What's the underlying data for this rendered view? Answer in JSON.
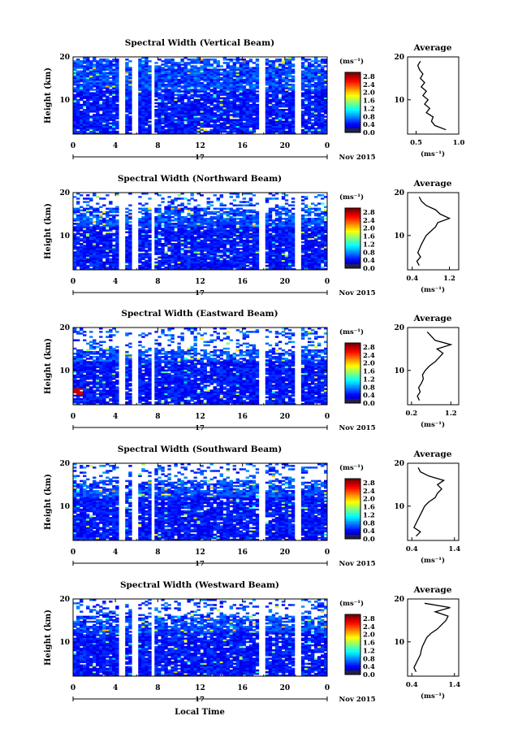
{
  "figure": {
    "xaxis_title": "Local Time",
    "date_label": "Nov 2015",
    "day_label": "17",
    "colorbar_unit": "(ms⁻¹)",
    "average_title": "Average",
    "average_unit": "(ms⁻¹)",
    "ylabel": "Height (km)"
  },
  "chart_data": [
    {
      "type": "heatmap",
      "title": "Spectral Width (Vertical Beam)",
      "x_ticks": [
        "0",
        "4",
        "8",
        "12",
        "16",
        "20",
        "0"
      ],
      "y_ticks": [
        "20",
        "10"
      ],
      "xlim": [
        0,
        24
      ],
      "ylim": [
        2,
        20
      ],
      "colorbar_ticks": [
        "2.8",
        "2.4",
        "2.0",
        "1.6",
        "1.2",
        "0.8",
        "0.4",
        "0.0"
      ],
      "colorbar_range": [
        0,
        3.0
      ],
      "average_profile": {
        "x_ticks": [
          "0.5",
          "1.0"
        ],
        "xlim": [
          0.4,
          1.0
        ],
        "ylim": [
          2,
          20
        ],
        "height_km": [
          3,
          4,
          5,
          6,
          7,
          8,
          9,
          10,
          11,
          12,
          13,
          14,
          15,
          16,
          17,
          18,
          19
        ],
        "width_ms": [
          0.85,
          0.72,
          0.68,
          0.7,
          0.62,
          0.66,
          0.6,
          0.64,
          0.58,
          0.62,
          0.56,
          0.6,
          0.55,
          0.58,
          0.54,
          0.52,
          0.55
        ]
      }
    },
    {
      "type": "heatmap",
      "title": "Spectral Width (Northward Beam)",
      "x_ticks": [
        "0",
        "4",
        "8",
        "12",
        "16",
        "20",
        "0"
      ],
      "y_ticks": [
        "20",
        "10"
      ],
      "xlim": [
        0,
        24
      ],
      "ylim": [
        2,
        20
      ],
      "colorbar_ticks": [
        "2.8",
        "2.4",
        "2.0",
        "1.6",
        "1.2",
        "0.8",
        "0.4",
        "0.0"
      ],
      "colorbar_range": [
        0,
        3.0
      ],
      "average_profile": {
        "x_ticks": [
          "0.4",
          "1.2"
        ],
        "xlim": [
          0.3,
          1.4
        ],
        "ylim": [
          2,
          20
        ],
        "height_km": [
          3,
          4,
          5,
          6,
          7,
          8,
          9,
          10,
          11,
          12,
          13,
          14,
          15,
          16,
          17,
          18,
          19
        ],
        "width_ms": [
          0.55,
          0.5,
          0.58,
          0.52,
          0.56,
          0.6,
          0.65,
          0.7,
          0.8,
          0.9,
          0.95,
          1.2,
          1.0,
          0.9,
          0.7,
          0.6,
          0.55
        ]
      }
    },
    {
      "type": "heatmap",
      "title": "Spectral Width (Eastward Beam)",
      "x_ticks": [
        "0",
        "4",
        "8",
        "12",
        "16",
        "20",
        "0"
      ],
      "y_ticks": [
        "20",
        "10"
      ],
      "xlim": [
        0,
        24
      ],
      "ylim": [
        2,
        20
      ],
      "colorbar_ticks": [
        "2.8",
        "2.4",
        "2.0",
        "1.6",
        "1.2",
        "0.8",
        "0.4",
        "0.0"
      ],
      "colorbar_range": [
        0,
        3.0
      ],
      "average_profile": {
        "x_ticks": [
          "0.2",
          "1.2"
        ],
        "xlim": [
          0.1,
          1.4
        ],
        "ylim": [
          2,
          20
        ],
        "height_km": [
          3,
          4,
          5,
          6,
          7,
          8,
          9,
          10,
          11,
          12,
          13,
          14,
          15,
          16,
          17,
          18,
          19
        ],
        "width_ms": [
          0.4,
          0.35,
          0.42,
          0.38,
          0.45,
          0.5,
          0.48,
          0.55,
          0.65,
          0.8,
          0.9,
          1.0,
          0.85,
          1.2,
          0.8,
          0.7,
          0.6
        ]
      }
    },
    {
      "type": "heatmap",
      "title": "Spectral Width (Southward Beam)",
      "x_ticks": [
        "0",
        "4",
        "8",
        "12",
        "16",
        "20",
        "0"
      ],
      "y_ticks": [
        "20",
        "10"
      ],
      "xlim": [
        0,
        24
      ],
      "ylim": [
        2,
        20
      ],
      "colorbar_ticks": [
        "2.8",
        "2.4",
        "2.0",
        "1.6",
        "1.2",
        "0.8",
        "0.4",
        "0.0"
      ],
      "colorbar_range": [
        0,
        3.0
      ],
      "average_profile": {
        "x_ticks": [
          "0.4",
          "1.4"
        ],
        "xlim": [
          0.3,
          1.5
        ],
        "ylim": [
          2,
          20
        ],
        "height_km": [
          3,
          4,
          5,
          6,
          7,
          8,
          9,
          10,
          11,
          12,
          13,
          14,
          15,
          16,
          17,
          18,
          19
        ],
        "width_ms": [
          0.5,
          0.6,
          0.45,
          0.5,
          0.55,
          0.6,
          0.65,
          0.7,
          0.8,
          0.95,
          1.0,
          1.1,
          1.0,
          1.15,
          0.8,
          0.6,
          0.55
        ]
      }
    },
    {
      "type": "heatmap",
      "title": "Spectral Width (Westward Beam)",
      "x_ticks": [
        "0",
        "4",
        "8",
        "12",
        "16",
        "20",
        "0"
      ],
      "y_ticks": [
        "20",
        "10"
      ],
      "xlim": [
        0,
        24
      ],
      "ylim": [
        2,
        20
      ],
      "colorbar_ticks": [
        "2.8",
        "2.4",
        "2.0",
        "1.6",
        "1.2",
        "0.8",
        "0.4",
        "0.0"
      ],
      "colorbar_range": [
        0,
        3.0
      ],
      "average_profile": {
        "x_ticks": [
          "0.4",
          "1.4"
        ],
        "xlim": [
          0.3,
          1.5
        ],
        "ylim": [
          2,
          20
        ],
        "height_km": [
          3,
          4,
          5,
          6,
          7,
          8,
          9,
          10,
          11,
          12,
          13,
          14,
          15,
          16,
          17,
          18,
          19
        ],
        "width_ms": [
          0.5,
          0.45,
          0.5,
          0.55,
          0.6,
          0.62,
          0.65,
          0.7,
          0.75,
          0.85,
          1.0,
          1.1,
          1.2,
          1.25,
          0.95,
          1.3,
          0.7
        ]
      }
    }
  ]
}
